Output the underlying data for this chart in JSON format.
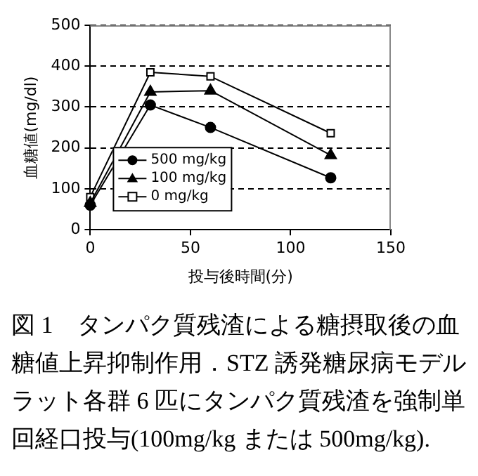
{
  "chart_data": {
    "type": "line",
    "xlabel": "投与後時間(分)",
    "ylabel": "血糖値(mg/dl)",
    "x": [
      0,
      30,
      60,
      120
    ],
    "series": [
      {
        "name": "500 mg/kg",
        "color": "#000000",
        "marker": "circle",
        "values": [
          60,
          305,
          250,
          127
        ]
      },
      {
        "name": "100 mg/kg",
        "color": "#000000",
        "marker": "triangle",
        "values": [
          65,
          337,
          340,
          182
        ]
      },
      {
        "name": "0 mg/kg",
        "color": "#000000",
        "marker": "square",
        "values": [
          80,
          385,
          375,
          236
        ]
      }
    ],
    "xlim": [
      0,
      150
    ],
    "xticks": [
      0,
      50,
      100,
      150
    ],
    "ylim": [
      0,
      500
    ],
    "yticks": [
      0,
      100,
      200,
      300,
      400,
      500
    ],
    "grid": "y",
    "legend": "bottom left",
    "line_style": "solid",
    "annotations": [
      "図 1　タンパク質残渣による糖摂取後の血糖値上昇抑制作用．STZ 誘発糖尿病モデルラット各群 6 匹にタンパク質残渣を強制単回経口投与(100mg/kg または 500mg/kg)."
    ]
  }
}
